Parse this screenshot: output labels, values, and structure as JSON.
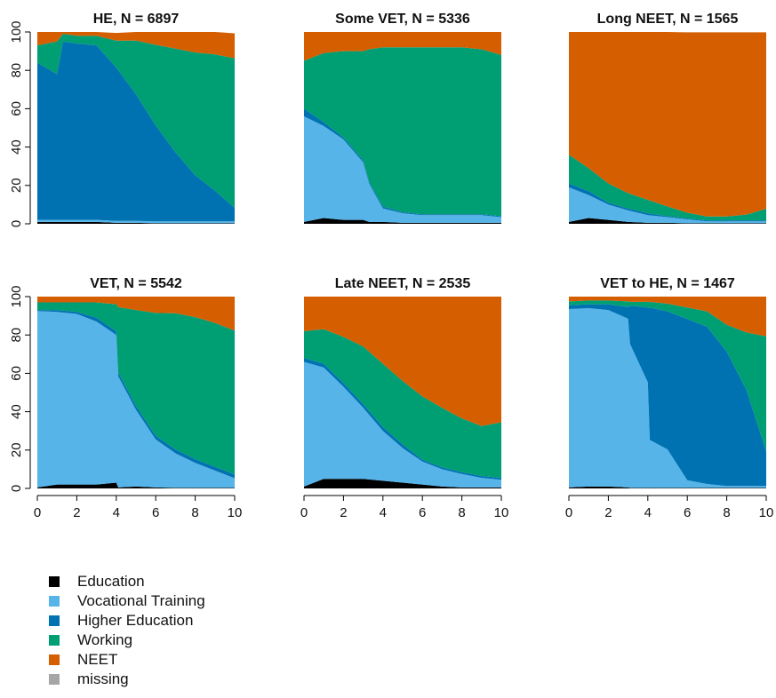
{
  "colors": {
    "Education": "#000000",
    "Vocational Training": "#56B4E9",
    "Higher Education": "#0072B2",
    "Working": "#009E73",
    "NEET": "#D55E00",
    "missing": "#A6A6A6"
  },
  "legend": [
    {
      "label": "Education",
      "color": "#000000"
    },
    {
      "label": "Vocational Training",
      "color": "#56B4E9"
    },
    {
      "label": "Higher Education",
      "color": "#0072B2"
    },
    {
      "label": "Working",
      "color": "#009E73"
    },
    {
      "label": "NEET",
      "color": "#D55E00"
    },
    {
      "label": "missing",
      "color": "#A6A6A6"
    }
  ],
  "chart_data": [
    {
      "type": "area",
      "title": "HE, N = 6897",
      "xlim": [
        0,
        10
      ],
      "ylim": [
        0,
        100
      ],
      "xticks": [
        0,
        2,
        4,
        6,
        8,
        10
      ],
      "yticks": [
        0,
        20,
        40,
        60,
        80,
        100
      ],
      "x": [
        0,
        1,
        1.3,
        2,
        3,
        4,
        5,
        6,
        7,
        8,
        9,
        10
      ],
      "series": [
        {
          "name": "Education",
          "values": [
            1,
            1,
            1,
            1,
            1,
            0.5,
            0.5,
            0.3,
            0.3,
            0.3,
            0.3,
            0.3
          ]
        },
        {
          "name": "Vocational Training",
          "values": [
            1,
            1,
            1,
            1,
            1,
            1,
            1,
            1,
            1,
            1,
            1,
            1
          ]
        },
        {
          "name": "Higher Education",
          "values": [
            82,
            76,
            93,
            92,
            91,
            80,
            66,
            50,
            36,
            24,
            16,
            7
          ]
        },
        {
          "name": "Working",
          "values": [
            9,
            17,
            4,
            4,
            5,
            14,
            28,
            42,
            54,
            64,
            71,
            78
          ]
        },
        {
          "name": "NEET",
          "values": [
            7,
            5,
            1,
            2,
            2,
            4,
            5,
            7,
            9,
            11,
            12,
            13
          ]
        },
        {
          "name": "missing",
          "values": [
            0,
            0,
            0,
            0,
            0,
            0,
            0,
            0,
            0,
            0,
            0,
            0
          ]
        }
      ]
    },
    {
      "type": "area",
      "title": "Some VET, N = 5336",
      "xlim": [
        0,
        10
      ],
      "ylim": [
        0,
        100
      ],
      "xticks": [
        0,
        2,
        4,
        6,
        8,
        10
      ],
      "yticks": [
        0,
        20,
        40,
        60,
        80,
        100
      ],
      "x": [
        0,
        1,
        2,
        3,
        3.3,
        4,
        5,
        6,
        7,
        8,
        9,
        10
      ],
      "series": [
        {
          "name": "Education",
          "values": [
            1,
            3,
            2,
            2,
            1,
            1,
            0.5,
            0.5,
            0.5,
            0.5,
            0.5,
            0.5
          ]
        },
        {
          "name": "Vocational Training",
          "values": [
            55,
            48,
            42,
            30,
            20,
            7,
            5,
            4,
            4,
            4,
            4,
            3
          ]
        },
        {
          "name": "Higher Education",
          "values": [
            4,
            2,
            1,
            1,
            1,
            1,
            0.5,
            0.5,
            0.5,
            0.5,
            0.5,
            0.5
          ]
        },
        {
          "name": "Working",
          "values": [
            25,
            36,
            45,
            57,
            69,
            83,
            86,
            87,
            87,
            87,
            86,
            84
          ]
        },
        {
          "name": "NEET",
          "values": [
            15,
            11,
            10,
            10,
            9,
            8,
            8,
            8,
            8,
            8,
            9,
            12
          ]
        },
        {
          "name": "missing",
          "values": [
            0,
            0,
            0,
            0,
            0,
            0,
            0,
            0,
            0,
            0,
            0,
            0
          ]
        }
      ]
    },
    {
      "type": "area",
      "title": "Long NEET, N = 1565",
      "xlim": [
        0,
        10
      ],
      "ylim": [
        0,
        100
      ],
      "xticks": [
        0,
        2,
        4,
        6,
        8,
        10
      ],
      "yticks": [
        0,
        20,
        40,
        60,
        80,
        100
      ],
      "x": [
        0,
        1,
        2,
        3,
        4,
        5,
        6,
        7,
        8,
        9,
        10
      ],
      "series": [
        {
          "name": "Education",
          "values": [
            1,
            3,
            2,
            1,
            0.5,
            0.5,
            0.3,
            0.3,
            0.3,
            0.3,
            0.3
          ]
        },
        {
          "name": "Vocational Training",
          "values": [
            18,
            12,
            8,
            6,
            4,
            3,
            2,
            1,
            1,
            1,
            1
          ]
        },
        {
          "name": "Higher Education",
          "values": [
            2,
            2,
            1,
            1,
            1,
            0.5,
            0.5,
            0.5,
            0.5,
            0.5,
            0.5
          ]
        },
        {
          "name": "Working",
          "values": [
            15,
            12,
            10,
            8,
            7,
            5,
            3,
            2,
            2,
            3,
            6
          ]
        },
        {
          "name": "NEET",
          "values": [
            64,
            71,
            79,
            84,
            87.5,
            91,
            94,
            96,
            96,
            95,
            92
          ]
        },
        {
          "name": "missing",
          "values": [
            0,
            0,
            0,
            0,
            0,
            0,
            0,
            0,
            0,
            0,
            0
          ]
        }
      ]
    },
    {
      "type": "area",
      "title": "VET, N = 5542",
      "xlim": [
        0,
        10
      ],
      "ylim": [
        0,
        100
      ],
      "xticks": [
        0,
        2,
        4,
        6,
        8,
        10
      ],
      "yticks": [
        0,
        20,
        40,
        60,
        80,
        100
      ],
      "x": [
        0,
        1,
        2,
        3,
        4,
        4.1,
        5,
        6,
        7,
        8,
        9,
        10
      ],
      "series": [
        {
          "name": "Education",
          "values": [
            0.5,
            2,
            2,
            2,
            3,
            0.5,
            1,
            0.5,
            0.3,
            0.3,
            0.3,
            0.3
          ]
        },
        {
          "name": "Vocational Training",
          "values": [
            92,
            90,
            89,
            85,
            77,
            58,
            40,
            25,
            18,
            13,
            9,
            5
          ]
        },
        {
          "name": "Higher Education",
          "values": [
            0.5,
            1,
            1,
            2,
            2,
            2,
            2,
            2,
            2,
            2,
            2,
            2
          ]
        },
        {
          "name": "Working",
          "values": [
            4,
            4,
            5,
            8,
            14,
            34,
            50,
            64,
            71,
            74,
            75,
            75
          ]
        },
        {
          "name": "NEET",
          "values": [
            3,
            3,
            3,
            3,
            4,
            5.5,
            7,
            8.5,
            8.7,
            10.7,
            13.7,
            17.7
          ]
        },
        {
          "name": "missing",
          "values": [
            0,
            0,
            0,
            0,
            0,
            0,
            0,
            0,
            0,
            0,
            0,
            0
          ]
        }
      ]
    },
    {
      "type": "area",
      "title": "Late NEET, N = 2535",
      "xlim": [
        0,
        10
      ],
      "ylim": [
        0,
        100
      ],
      "xticks": [
        0,
        2,
        4,
        6,
        8,
        10
      ],
      "yticks": [
        0,
        20,
        40,
        60,
        80,
        100
      ],
      "x": [
        0,
        1,
        2,
        3,
        4,
        5,
        6,
        7,
        8,
        9,
        10
      ],
      "series": [
        {
          "name": "Education",
          "values": [
            1,
            5,
            5,
            5,
            4,
            3,
            2,
            1,
            0.5,
            0.5,
            0.5
          ]
        },
        {
          "name": "Vocational Training",
          "values": [
            65,
            58,
            48,
            37,
            26,
            18,
            12,
            9,
            7,
            5,
            4
          ]
        },
        {
          "name": "Higher Education",
          "values": [
            2,
            2,
            2,
            2,
            2,
            2,
            1,
            1,
            1,
            1,
            1
          ]
        },
        {
          "name": "Working",
          "values": [
            14,
            18,
            24,
            30,
            33,
            33,
            33,
            31,
            28,
            26,
            29
          ]
        },
        {
          "name": "NEET",
          "values": [
            18,
            17,
            21,
            26,
            35,
            44,
            52,
            58,
            63.5,
            67.5,
            65.5
          ]
        },
        {
          "name": "missing",
          "values": [
            0,
            0,
            0,
            0,
            0,
            0,
            0,
            0,
            0,
            0,
            0
          ]
        }
      ]
    },
    {
      "type": "area",
      "title": "VET to HE, N = 1467",
      "xlim": [
        0,
        10
      ],
      "ylim": [
        0,
        100
      ],
      "xticks": [
        0,
        2,
        4,
        6,
        8,
        10
      ],
      "yticks": [
        0,
        20,
        40,
        60,
        80,
        100
      ],
      "x": [
        0,
        1,
        2,
        3,
        3.1,
        4,
        4.1,
        5,
        6,
        7,
        8,
        9,
        10
      ],
      "series": [
        {
          "name": "Education",
          "values": [
            0.5,
            1,
            1,
            0.5,
            0.3,
            0.3,
            0.3,
            0.3,
            0.3,
            0.3,
            0.3,
            0.3,
            0.3
          ]
        },
        {
          "name": "Vocational Training",
          "values": [
            93,
            93,
            92,
            88,
            75,
            55,
            25,
            20,
            4,
            2,
            1,
            1,
            1
          ]
        },
        {
          "name": "Higher Education",
          "values": [
            2,
            2,
            3,
            6,
            20,
            39,
            69,
            72,
            84,
            82,
            70,
            50,
            18
          ]
        },
        {
          "name": "Working",
          "values": [
            2,
            2,
            2,
            3,
            2,
            3,
            3,
            4,
            6,
            8,
            14,
            30,
            60
          ]
        },
        {
          "name": "NEET",
          "values": [
            2.5,
            2,
            2,
            2.5,
            2.7,
            2.7,
            2.7,
            3.7,
            5.7,
            7.7,
            14.7,
            18.7,
            20.7
          ]
        },
        {
          "name": "missing",
          "values": [
            0,
            0,
            0,
            0,
            0,
            0,
            0,
            0,
            0,
            0,
            0,
            0,
            0
          ]
        }
      ]
    }
  ]
}
